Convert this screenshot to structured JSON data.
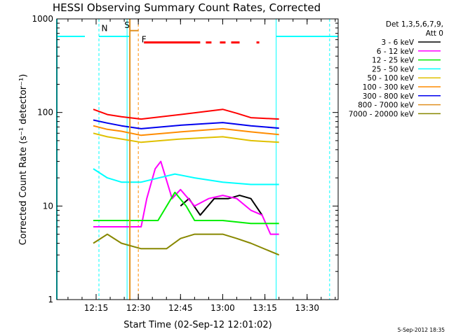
{
  "chart_data": {
    "type": "line",
    "title": "HESSI Observing Summary Count Rates, Corrected",
    "xlabel": "Start Time (02-Sep-12 12:01:02)",
    "ylabel": "Corrected Count Rate (s⁻¹ detector⁻¹)",
    "yscale": "log",
    "ylim": [
      1,
      1000
    ],
    "xlim": [
      "12:01:02",
      "13:41:02"
    ],
    "xticks": [
      "12:15",
      "12:30",
      "12:45",
      "13:00",
      "13:15",
      "13:30"
    ],
    "yticks": [
      "1",
      "10",
      "100",
      "1000"
    ],
    "legend": {
      "header": [
        "Det 1,3,5,6,7,9,",
        "Att 0"
      ],
      "placement": "right"
    },
    "series": [
      {
        "name": "3 - 6 keV",
        "color": "#000000",
        "points": [
          [
            "12:45",
            10
          ],
          [
            "12:48",
            12
          ],
          [
            "12:52",
            8
          ],
          [
            "12:57",
            12
          ],
          [
            "13:02",
            12
          ],
          [
            "13:06",
            13
          ],
          [
            "13:10",
            12
          ],
          [
            "13:14",
            8
          ]
        ]
      },
      {
        "name": "6 - 12 keV",
        "color": "#ff00ff",
        "points": [
          [
            "12:14",
            6
          ],
          [
            "12:19",
            6
          ],
          [
            "12:24",
            6
          ],
          [
            "12:31",
            6
          ],
          [
            "12:33",
            12
          ],
          [
            "12:36",
            25
          ],
          [
            "12:38",
            30
          ],
          [
            "12:42",
            12
          ],
          [
            "12:45",
            15
          ],
          [
            "12:50",
            10
          ],
          [
            "12:55",
            12
          ],
          [
            "13:00",
            13
          ],
          [
            "13:05",
            12
          ],
          [
            "13:10",
            9
          ],
          [
            "13:14",
            8
          ],
          [
            "13:17",
            5
          ],
          [
            "13:20",
            5
          ]
        ]
      },
      {
        "name": "12 - 25 keV",
        "color": "#00ee00",
        "points": [
          [
            "12:14",
            7
          ],
          [
            "12:19",
            7
          ],
          [
            "12:24",
            7
          ],
          [
            "12:31",
            7
          ],
          [
            "12:37",
            7
          ],
          [
            "12:43",
            14
          ],
          [
            "12:47",
            10
          ],
          [
            "12:50",
            7
          ],
          [
            "13:00",
            7
          ],
          [
            "13:10",
            6.5
          ],
          [
            "13:20",
            6.5
          ]
        ]
      },
      {
        "name": "25 - 50 keV",
        "color": "#00ffff",
        "points": [
          [
            "12:14",
            25
          ],
          [
            "12:19",
            20
          ],
          [
            "12:24",
            18
          ],
          [
            "12:31",
            18
          ],
          [
            "12:43",
            22
          ],
          [
            "12:50",
            20
          ],
          [
            "13:00",
            18
          ],
          [
            "13:10",
            17
          ],
          [
            "13:20",
            17
          ]
        ]
      },
      {
        "name": "50 - 100 keV",
        "color": "#e0c000",
        "points": [
          [
            "12:14",
            60
          ],
          [
            "12:19",
            55
          ],
          [
            "12:24",
            52
          ],
          [
            "12:31",
            48
          ],
          [
            "12:45",
            52
          ],
          [
            "13:00",
            55
          ],
          [
            "13:10",
            50
          ],
          [
            "13:20",
            48
          ]
        ]
      },
      {
        "name": "100 - 300 keV",
        "color": "#ff8c00",
        "points": [
          [
            "12:14",
            72
          ],
          [
            "12:19",
            66
          ],
          [
            "12:24",
            63
          ],
          [
            "12:31",
            57
          ],
          [
            "12:45",
            62
          ],
          [
            "13:00",
            67
          ],
          [
            "13:10",
            62
          ],
          [
            "13:20",
            58
          ]
        ]
      },
      {
        "name": "300 - 800 keV",
        "color": "#0000ee",
        "points": [
          [
            "12:14",
            83
          ],
          [
            "12:19",
            77
          ],
          [
            "12:24",
            72
          ],
          [
            "12:31",
            67
          ],
          [
            "12:45",
            73
          ],
          [
            "13:00",
            78
          ],
          [
            "13:10",
            72
          ],
          [
            "13:20",
            68
          ]
        ]
      },
      {
        "name": "800 - 7000 keV",
        "color": "#e09020",
        "points": [
          [
            "12:27",
            1000
          ],
          [
            "12:27",
            1
          ],
          [
            "12:27",
            750
          ],
          [
            "12:30",
            750
          ]
        ]
      },
      {
        "name": "7000 - 20000 keV",
        "color": "#888800",
        "points": [
          [
            "12:14",
            4
          ],
          [
            "12:19",
            5
          ],
          [
            "12:24",
            4
          ],
          [
            "12:31",
            3.5
          ],
          [
            "12:40",
            3.5
          ],
          [
            "12:45",
            4.5
          ],
          [
            "12:50",
            5
          ],
          [
            "13:00",
            5
          ],
          [
            "13:05",
            4.5
          ],
          [
            "13:10",
            4
          ],
          [
            "13:20",
            3
          ]
        ]
      },
      {
        "name": "",
        "color": "#ff0000",
        "points": [
          [
            "12:14",
            108
          ],
          [
            "12:19",
            95
          ],
          [
            "12:24",
            90
          ],
          [
            "12:31",
            85
          ],
          [
            "12:45",
            95
          ],
          [
            "13:00",
            108
          ],
          [
            "13:05",
            98
          ],
          [
            "13:10",
            88
          ],
          [
            "13:20",
            85
          ]
        ]
      }
    ],
    "annotations": [
      {
        "text": "N",
        "x": "12:18",
        "y": 740,
        "color": "#00ffff"
      },
      {
        "text": "S",
        "x": "12:26",
        "y": 800,
        "color": "#ff8c00"
      },
      {
        "text": "F",
        "x": "12:32",
        "y": 560,
        "color": "#ff0000"
      }
    ],
    "attenuator_level_y": 650,
    "flare_flag_y": 560
  },
  "footer": {
    "timestamp": "5-Sep-2012 18:35"
  }
}
